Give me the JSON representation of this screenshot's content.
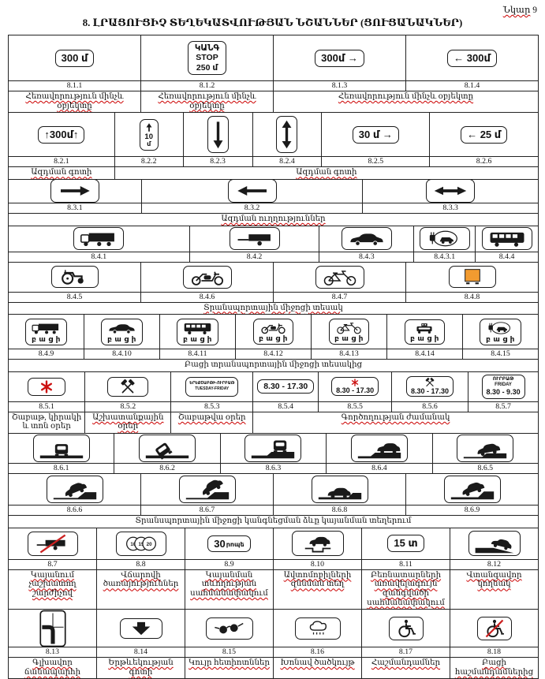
{
  "page": {
    "figure_word": "Նկար",
    "figure_number": "9",
    "title": "8. ԼՐԱՑՈՒՑԻՉ ՏԵՂԵԿԱՏՎՈՒԹՅԱՆ ՆՇԱՆՆԵՐ (ՑՈՒՑԱՆԱԿՆԵՐ)"
  },
  "colors": {
    "ink": "#1a1a1a",
    "squiggle_red": "#cc0000",
    "asterisk_red": "#cc1111",
    "slash_red": "#cc2222",
    "dangerous_goods_orange": "#f29b30"
  },
  "rows": [
    {
      "cells": [
        {
          "number": "8.1.1",
          "sign": {
            "type": "text",
            "lines": [
              "300 մ"
            ]
          }
        },
        {
          "number": "8.1.2",
          "sign": {
            "type": "text",
            "style": "stack",
            "lines": [
              "ԿԱՆԳ",
              "STOP",
              "250 մ"
            ]
          }
        },
        {
          "number": "8.1.3",
          "sign": {
            "type": "text",
            "lines": [
              "300մ →"
            ]
          }
        },
        {
          "number": "8.1.4",
          "sign": {
            "type": "text",
            "lines": [
              "← 300մ"
            ]
          }
        }
      ],
      "captions": [
        {
          "text": "Հեռավորություն մինչև օբյեկտը",
          "span": 1,
          "squiggle": true
        },
        {
          "text": "Հեռավորություն մինչև օբյեկտը",
          "span": 1,
          "squiggle": true
        },
        {
          "text": "Հեռավորություն մինչև օբյեկտը",
          "span": 2,
          "squiggle": true
        }
      ]
    },
    {
      "cells": [
        {
          "number": "8.2.1",
          "sign": {
            "type": "text",
            "lines": [
              "↑300մ↑"
            ]
          }
        },
        {
          "number": "8.2.2",
          "sign": {
            "type": "vertical",
            "icon": "up-arrow-icon",
            "lines": [
              "10",
              "մ"
            ]
          }
        },
        {
          "number": "8.2.3",
          "sign": {
            "type": "vertical",
            "icon": "down-arrow-long-icon",
            "lines": []
          }
        },
        {
          "number": "8.2.4",
          "sign": {
            "type": "vertical",
            "icon": "updown-arrow-icon",
            "lines": []
          }
        },
        {
          "number": "8.2.5",
          "sign": {
            "type": "text",
            "lines": [
              "30 մ →"
            ]
          }
        },
        {
          "number": "8.2.6",
          "sign": {
            "type": "text",
            "lines": [
              "← 25 մ"
            ]
          }
        }
      ],
      "captions": [
        {
          "text": "Ազդման գոտի",
          "span": 1,
          "squiggle": true
        },
        {
          "text": "Ազդման գոտի",
          "span": 5,
          "squiggle": true
        }
      ]
    },
    {
      "cells": [
        {
          "number": "8.3.1",
          "sign": {
            "type": "icon",
            "icon": "right-arrow-icon"
          }
        },
        {
          "number": "8.3.2",
          "sign": {
            "type": "icon",
            "icon": "left-arrow-icon"
          }
        },
        {
          "number": "8.3.3",
          "sign": {
            "type": "icon",
            "icon": "both-arrow-icon"
          }
        }
      ],
      "captions": [
        {
          "text": "Ազդման ուղղություններ",
          "span": 3,
          "squiggle": true
        }
      ]
    },
    {
      "cells": [
        {
          "number": "8.4.1",
          "sign": {
            "type": "icon",
            "icon": "truck-icon"
          }
        },
        {
          "number": "8.4.2",
          "sign": {
            "type": "icon",
            "icon": "trailer-icon"
          }
        },
        {
          "number": "8.4.3",
          "sign": {
            "type": "icon",
            "icon": "car-icon"
          }
        },
        {
          "number": "8.4.3.1",
          "sign": {
            "type": "icon",
            "icon": "electric-car-icon"
          }
        },
        {
          "number": "8.4.4",
          "sign": {
            "type": "icon",
            "icon": "bus-icon"
          }
        }
      ],
      "captions": []
    },
    {
      "cells": [
        {
          "number": "8.4.5",
          "sign": {
            "type": "icon",
            "icon": "tractor-icon"
          }
        },
        {
          "number": "8.4.6",
          "sign": {
            "type": "icon",
            "icon": "moped-icon"
          }
        },
        {
          "number": "8.4.7",
          "sign": {
            "type": "icon",
            "icon": "bicycle-icon"
          }
        },
        {
          "number": "8.4.8",
          "sign": {
            "type": "icon",
            "icon": "orange-plate-icon"
          }
        }
      ],
      "captions": [
        {
          "text": "Տրանսպորտային միջոցի տեսակ",
          "span": 4,
          "squiggle": true
        }
      ]
    },
    {
      "cells": [
        {
          "number": "8.4.9",
          "sign": {
            "type": "icon",
            "icon": "truck-icon",
            "label": "բ ա ց ի"
          }
        },
        {
          "number": "8.4.10",
          "sign": {
            "type": "icon",
            "icon": "car-icon",
            "label": "բ ա ց ի"
          }
        },
        {
          "number": "8.4.11",
          "sign": {
            "type": "icon",
            "icon": "bus-icon",
            "label": "բ ա ց ի"
          }
        },
        {
          "number": "8.4.12",
          "sign": {
            "type": "icon",
            "icon": "moped-icon",
            "label": "բ ա ց ի"
          }
        },
        {
          "number": "8.4.13",
          "sign": {
            "type": "icon",
            "icon": "bicycle-icon",
            "label": "բ ա ց ի"
          }
        },
        {
          "number": "8.4.14",
          "sign": {
            "type": "icon",
            "icon": "taxi-icon",
            "label": "բ ա ց ի"
          }
        },
        {
          "number": "8.4.15",
          "sign": {
            "type": "icon",
            "icon": "electric-car-icon",
            "label": "բ ա ց ի"
          }
        }
      ],
      "captions": [
        {
          "text": "Բացի տրանսպորտային միջոցի տեսակից",
          "span": 7,
          "squiggle": false
        }
      ]
    },
    {
      "cells": [
        {
          "number": "8.5.1",
          "sign": {
            "type": "icon",
            "icon": "asterisk-icon"
          }
        },
        {
          "number": "8.5.2",
          "sign": {
            "type": "icon",
            "icon": "hammers-icon"
          }
        },
        {
          "number": "8.5.3",
          "sign": {
            "type": "text",
            "style": "tiny",
            "lines": [
              "ԵՐԵՔՇԱԲԹԻ-ՈՒՐԲԱԹ",
              "TUESDAY-FRIDAY"
            ]
          }
        },
        {
          "number": "8.5.4",
          "sign": {
            "type": "text",
            "style": "time",
            "lines": [
              "8.30 - 17.30"
            ]
          }
        },
        {
          "number": "8.5.5",
          "sign": {
            "type": "icon-text",
            "icon": "asterisk-icon",
            "lines": [
              "8.30 - 17.30"
            ]
          }
        },
        {
          "number": "8.5.6",
          "sign": {
            "type": "icon-text",
            "icon": "hammers-icon",
            "lines": [
              "8.30 - 17.30"
            ]
          }
        },
        {
          "number": "8.5.7",
          "sign": {
            "type": "text",
            "style": "tiny-stack",
            "lines": [
              "ՈՒՐԲԱԹ",
              "FRIDAY",
              "8.30 - 9.30"
            ]
          }
        }
      ],
      "captions": [
        {
          "text": "Շաբաթ, կիրակի և տոն օրեր",
          "span": 1,
          "squiggle": false
        },
        {
          "text": "Աշխատանքային օրեր",
          "span": 1,
          "squiggle": true
        },
        {
          "text": "Շաբաթվա օրեր",
          "span": 1,
          "squiggle": true
        },
        {
          "text": "Գործողության ժամանակ",
          "span": 4,
          "squiggle": true
        }
      ]
    },
    {
      "cells": [
        {
          "number": "8.6.1",
          "sign": {
            "type": "icon",
            "icon": "parking-rear-road-icon"
          }
        },
        {
          "number": "8.6.2",
          "sign": {
            "type": "icon",
            "icon": "parking-rear-angle-icon"
          }
        },
        {
          "number": "8.6.3",
          "sign": {
            "type": "icon",
            "icon": "parking-rear-curb-icon"
          }
        },
        {
          "number": "8.6.4",
          "sign": {
            "type": "icon",
            "icon": "parking-side-curb-icon"
          }
        },
        {
          "number": "8.6.5",
          "sign": {
            "type": "icon",
            "icon": "parking-half-curb-icon"
          }
        }
      ],
      "captions": []
    },
    {
      "cells": [
        {
          "number": "8.6.6",
          "sign": {
            "type": "icon",
            "icon": "parking-slope-left-icon"
          }
        },
        {
          "number": "8.6.7",
          "sign": {
            "type": "icon",
            "icon": "parking-slope-steep-icon"
          }
        },
        {
          "number": "8.6.8",
          "sign": {
            "type": "icon",
            "icon": "parking-side-flat-icon"
          }
        },
        {
          "number": "8.6.9",
          "sign": {
            "type": "icon",
            "icon": "parking-slope-mild-icon"
          }
        }
      ],
      "captions": [
        {
          "text": "Տրանսպորտային միջոցի կանգնեցման ձևը կայանման տեղերում",
          "span": 4,
          "squiggle": false
        }
      ]
    },
    {
      "cells": [
        {
          "number": "8.7",
          "sign": {
            "type": "icon",
            "icon": "trailer-crossed-icon"
          }
        },
        {
          "number": "8.8",
          "sign": {
            "type": "icon",
            "icon": "coins-icon",
            "values": [
              "10",
              "15",
              "20"
            ]
          }
        },
        {
          "number": "8.9",
          "sign": {
            "type": "text",
            "style": "mix",
            "lines": [
              "30",
              "րոպե"
            ]
          }
        },
        {
          "number": "8.10",
          "sign": {
            "type": "icon",
            "icon": "car-inspection-icon"
          }
        },
        {
          "number": "8.11",
          "sign": {
            "type": "text",
            "lines": [
              "15 տ"
            ]
          }
        },
        {
          "number": "8.12",
          "sign": {
            "type": "icon",
            "icon": "car-shoulder-icon"
          }
        }
      ],
      "captions": [
        {
          "text": "Կայանում չաշխատող շարժիչով",
          "span": 1,
          "squiggle": true
        },
        {
          "text": "Վճարովի ծառայություններ",
          "span": 1,
          "squiggle": true
        },
        {
          "text": "Կայանման տևողության սահմանափակում",
          "span": 1,
          "squiggle": true
        },
        {
          "text": "Ավտոմոբիլների զննման տեղ",
          "span": 1,
          "squiggle": true
        },
        {
          "text": "Բեռնատարների առավելագույն զանգվածի սահմանափակում",
          "span": 1,
          "squiggle": true
        },
        {
          "text": "Վտանգավոր կողնակ",
          "span": 1,
          "squiggle": true
        }
      ]
    },
    {
      "cells": [
        {
          "number": "8.13",
          "sign": {
            "type": "icon",
            "icon": "main-road-direction-icon"
          }
        },
        {
          "number": "8.14",
          "sign": {
            "type": "icon",
            "icon": "lane-arrow-icon"
          }
        },
        {
          "number": "8.15",
          "sign": {
            "type": "icon",
            "icon": "glasses-icon"
          }
        },
        {
          "number": "8.16",
          "sign": {
            "type": "icon",
            "icon": "rain-cloud-icon"
          }
        },
        {
          "number": "8.17",
          "sign": {
            "type": "icon",
            "icon": "wheelchair-icon"
          }
        },
        {
          "number": "8.18",
          "sign": {
            "type": "icon",
            "icon": "wheelchair-crossed-icon"
          }
        }
      ],
      "captions": [
        {
          "text": "Գլխավոր ճանապարհի",
          "span": 1,
          "squiggle": true
        },
        {
          "text": "Երթևեկության գոտի",
          "span": 1,
          "squiggle": true
        },
        {
          "text": "Կույր հետիոտններ",
          "span": 1,
          "squiggle": true
        },
        {
          "text": "Խոնավ ծածկույթ",
          "span": 1,
          "squiggle": true
        },
        {
          "text": "Հաշմանդամներ",
          "span": 1,
          "squiggle": true
        },
        {
          "text": "Բացի հաշմանդամներից",
          "span": 1,
          "squiggle": true
        }
      ]
    }
  ]
}
